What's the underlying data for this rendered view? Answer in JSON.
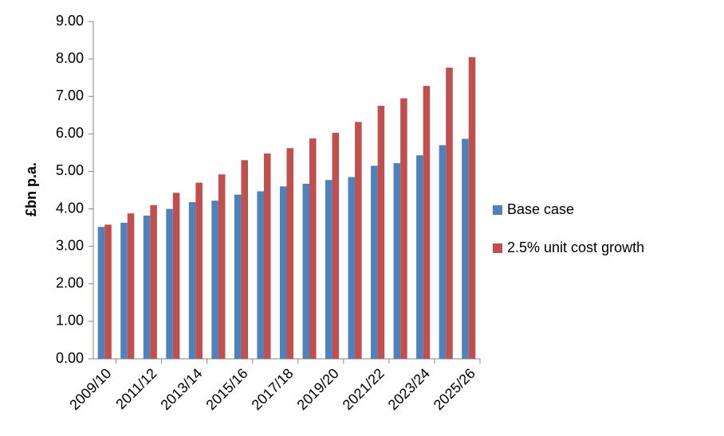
{
  "chart_data": {
    "type": "bar",
    "y_label": "£bn p.a.",
    "categories": [
      "2009/10",
      null,
      "2011/12",
      null,
      "2013/14",
      null,
      "2015/16",
      null,
      "2017/18",
      null,
      "2019/20",
      null,
      "2021/22",
      null,
      "2023/24",
      null,
      "2025/26"
    ],
    "series": [
      {
        "name": "Base case",
        "color": "#4f81bd",
        "values": [
          3.52,
          3.63,
          3.82,
          4.0,
          4.18,
          4.22,
          4.38,
          4.47,
          4.6,
          4.67,
          4.77,
          4.85,
          5.15,
          5.22,
          5.43,
          5.7,
          5.87
        ]
      },
      {
        "name": "2.5% unit cost growth",
        "color": "#c0504d",
        "values": [
          3.58,
          3.88,
          4.1,
          4.43,
          4.7,
          4.92,
          5.3,
          5.48,
          5.62,
          5.88,
          6.03,
          6.32,
          6.75,
          6.95,
          7.28,
          7.77,
          8.05
        ]
      }
    ],
    "ylim": [
      0,
      9
    ],
    "yticks": [
      {
        "value": 0,
        "label": "0.00"
      },
      {
        "value": 1,
        "label": "1.00"
      },
      {
        "value": 2,
        "label": "2.00"
      },
      {
        "value": 3,
        "label": "3.00"
      },
      {
        "value": 4,
        "label": "4.00"
      },
      {
        "value": 5,
        "label": "5.00"
      },
      {
        "value": 6,
        "label": "6.00"
      },
      {
        "value": 7,
        "label": "7.00"
      },
      {
        "value": 8,
        "label": "8.00"
      },
      {
        "value": 9,
        "label": "9.00"
      }
    ],
    "grid": false,
    "legend": "right"
  }
}
